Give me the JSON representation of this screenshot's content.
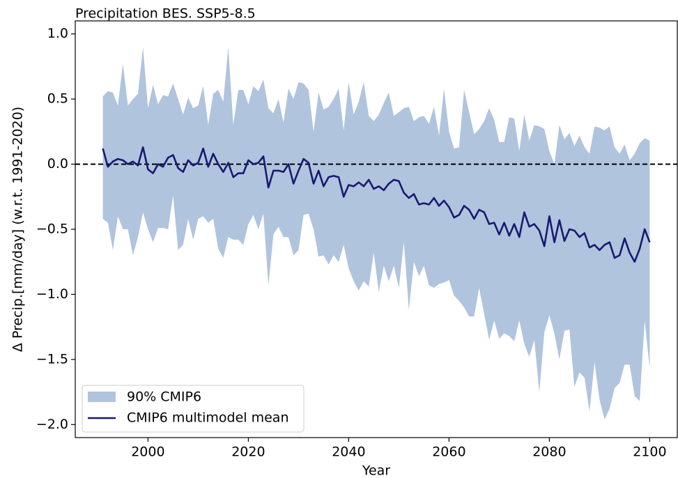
{
  "chart_data": {
    "type": "line",
    "title": "Precipitation BES. SSP5-8.5",
    "xlabel": "Year",
    "ylabel": "Δ Precip.[mm/day] (w.r.t. 1991-2020)",
    "x": [
      1991,
      1992,
      1993,
      1994,
      1995,
      1996,
      1997,
      1998,
      1999,
      2000,
      2001,
      2002,
      2003,
      2004,
      2005,
      2006,
      2007,
      2008,
      2009,
      2010,
      2011,
      2012,
      2013,
      2014,
      2015,
      2016,
      2017,
      2018,
      2019,
      2020,
      2021,
      2022,
      2023,
      2024,
      2025,
      2026,
      2027,
      2028,
      2029,
      2030,
      2031,
      2032,
      2033,
      2034,
      2035,
      2036,
      2037,
      2038,
      2039,
      2040,
      2041,
      2042,
      2043,
      2044,
      2045,
      2046,
      2047,
      2048,
      2049,
      2050,
      2051,
      2052,
      2053,
      2054,
      2055,
      2056,
      2057,
      2058,
      2059,
      2060,
      2061,
      2062,
      2063,
      2064,
      2065,
      2066,
      2067,
      2068,
      2069,
      2070,
      2071,
      2072,
      2073,
      2074,
      2075,
      2076,
      2077,
      2078,
      2079,
      2080,
      2081,
      2082,
      2083,
      2084,
      2085,
      2086,
      2087,
      2088,
      2089,
      2090,
      2091,
      2092,
      2093,
      2094,
      2095,
      2096,
      2097,
      2098,
      2099,
      2100
    ],
    "series": [
      {
        "name": "90% CMIP6",
        "color": "#b0c4de",
        "upper": [
          0.52,
          0.56,
          0.55,
          0.45,
          0.77,
          0.45,
          0.5,
          0.54,
          0.9,
          0.43,
          0.61,
          0.46,
          0.53,
          0.52,
          0.62,
          0.5,
          0.38,
          0.51,
          0.43,
          0.45,
          0.6,
          0.3,
          0.54,
          0.57,
          0.48,
          0.9,
          0.3,
          0.57,
          0.57,
          0.46,
          0.6,
          0.56,
          0.65,
          0.43,
          0.39,
          0.5,
          0.32,
          0.58,
          0.5,
          0.63,
          0.62,
          0.57,
          0.25,
          0.55,
          0.42,
          0.44,
          0.5,
          0.58,
          0.26,
          0.63,
          0.38,
          0.48,
          0.63,
          0.37,
          0.33,
          0.38,
          0.47,
          0.55,
          0.37,
          0.4,
          0.43,
          0.44,
          0.33,
          0.36,
          0.37,
          0.31,
          0.44,
          0.22,
          0.58,
          0.25,
          0.12,
          0.13,
          0.57,
          0.4,
          0.23,
          0.27,
          0.33,
          0.43,
          0.34,
          0.17,
          0.17,
          0.36,
          0.35,
          0.1,
          0.38,
          0.18,
          0.3,
          0.29,
          0.27,
          0.1,
          0.0,
          0.3,
          0.19,
          0.24,
          0.14,
          0.22,
          0.13,
          0.08,
          0.29,
          0.28,
          0.26,
          0.29,
          0.13,
          0.08,
          0.15,
          0.03,
          0.08,
          0.16,
          0.2,
          0.18
        ],
        "lower": [
          -0.42,
          -0.45,
          -0.66,
          -0.4,
          -0.5,
          -0.5,
          -0.7,
          -0.56,
          -0.37,
          -0.5,
          -0.6,
          -0.49,
          -0.49,
          -0.5,
          -0.24,
          -0.66,
          -0.62,
          -0.42,
          -0.58,
          -0.42,
          -0.4,
          -0.45,
          -0.42,
          -0.65,
          -0.72,
          -0.56,
          -0.58,
          -0.58,
          -0.62,
          -0.46,
          -0.39,
          -0.5,
          -0.38,
          -0.93,
          -0.54,
          -0.48,
          -0.56,
          -0.56,
          -0.7,
          -0.66,
          -0.39,
          -0.38,
          -0.5,
          -0.71,
          -0.7,
          -0.77,
          -0.7,
          -0.75,
          -0.62,
          -0.8,
          -0.9,
          -0.97,
          -0.9,
          -0.94,
          -0.68,
          -0.98,
          -0.78,
          -0.9,
          -0.78,
          -0.95,
          -0.6,
          -1.12,
          -0.75,
          -0.86,
          -0.78,
          -0.93,
          -0.95,
          -0.92,
          -0.91,
          -0.89,
          -1.01,
          -1.05,
          -1.1,
          -1.17,
          -1.17,
          -0.95,
          -1.15,
          -1.35,
          -1.2,
          -1.34,
          -1.3,
          -1.32,
          -1.36,
          -1.2,
          -1.38,
          -1.48,
          -1.35,
          -1.75,
          -1.29,
          -1.16,
          -1.3,
          -1.5,
          -1.28,
          -1.27,
          -1.71,
          -1.6,
          -1.64,
          -1.9,
          -1.52,
          -1.81,
          -1.96,
          -1.88,
          -1.72,
          -1.68,
          -1.54,
          -1.54,
          -1.78,
          -1.82,
          -1.2,
          -1.57
        ]
      },
      {
        "name": "CMIP6 multimodel mean",
        "color": "#191970",
        "values": [
          0.12,
          -0.02,
          0.02,
          0.04,
          0.03,
          0.0,
          0.02,
          -0.01,
          0.13,
          -0.04,
          -0.07,
          0.0,
          -0.02,
          0.05,
          0.07,
          -0.03,
          -0.06,
          0.03,
          -0.01,
          0.01,
          0.12,
          -0.02,
          0.08,
          0.0,
          -0.06,
          0.01,
          -0.1,
          -0.07,
          -0.07,
          0.03,
          0.0,
          0.01,
          0.06,
          -0.18,
          -0.05,
          -0.05,
          -0.06,
          0.0,
          -0.15,
          -0.05,
          0.04,
          0.01,
          -0.15,
          -0.05,
          -0.17,
          -0.1,
          -0.09,
          -0.1,
          -0.25,
          -0.16,
          -0.17,
          -0.14,
          -0.17,
          -0.12,
          -0.19,
          -0.17,
          -0.2,
          -0.15,
          -0.12,
          -0.13,
          -0.22,
          -0.26,
          -0.23,
          -0.31,
          -0.3,
          -0.31,
          -0.26,
          -0.32,
          -0.28,
          -0.33,
          -0.41,
          -0.39,
          -0.32,
          -0.35,
          -0.42,
          -0.35,
          -0.37,
          -0.46,
          -0.45,
          -0.54,
          -0.45,
          -0.55,
          -0.46,
          -0.56,
          -0.37,
          -0.48,
          -0.46,
          -0.51,
          -0.63,
          -0.4,
          -0.6,
          -0.43,
          -0.59,
          -0.5,
          -0.51,
          -0.56,
          -0.53,
          -0.64,
          -0.62,
          -0.66,
          -0.62,
          -0.6,
          -0.72,
          -0.7,
          -0.57,
          -0.68,
          -0.75,
          -0.65,
          -0.5,
          -0.6
        ]
      }
    ],
    "hline": 0,
    "xlim": [
      1985.5,
      2105.5
    ],
    "xticks": [
      2000,
      2020,
      2040,
      2060,
      2080,
      2100
    ],
    "ylim": [
      -2.1,
      1.1
    ],
    "yticks": [
      {
        "value": -2.0,
        "label": "−2.0"
      },
      {
        "value": -1.5,
        "label": "−1.5"
      },
      {
        "value": -1.0,
        "label": "−1.0"
      },
      {
        "value": -0.5,
        "label": "−0.5"
      },
      {
        "value": 0.0,
        "label": "0.0"
      },
      {
        "value": 0.5,
        "label": "0.5"
      },
      {
        "value": 1.0,
        "label": "1.0"
      }
    ],
    "legend": "lower left",
    "grid": false
  }
}
